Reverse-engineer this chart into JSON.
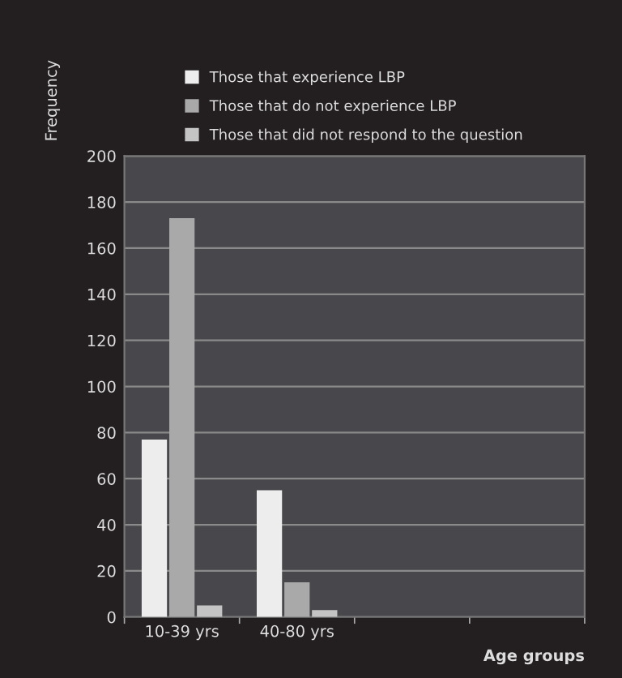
{
  "chart_data": {
    "type": "bar",
    "ylabel": "Frequency",
    "xlabel": "Age groups",
    "categories": [
      "10-39 yrs",
      "40-80 yrs",
      null,
      null
    ],
    "series": [
      {
        "name": "Those that experience LBP",
        "color": "#ededed",
        "values": [
          77,
          55,
          null,
          null
        ]
      },
      {
        "name": "Those that do not experience LBP",
        "color": "#a9a9a9",
        "values": [
          173,
          15,
          null,
          null
        ]
      },
      {
        "name": "Those that did not respond to the question",
        "color": "#c4c4c4",
        "values": [
          5,
          3,
          null,
          null
        ]
      }
    ],
    "ylim": [
      0,
      200
    ],
    "yticks": [
      0,
      20,
      40,
      60,
      80,
      100,
      120,
      140,
      160,
      180,
      200
    ],
    "grid": "y",
    "legend": "top"
  }
}
